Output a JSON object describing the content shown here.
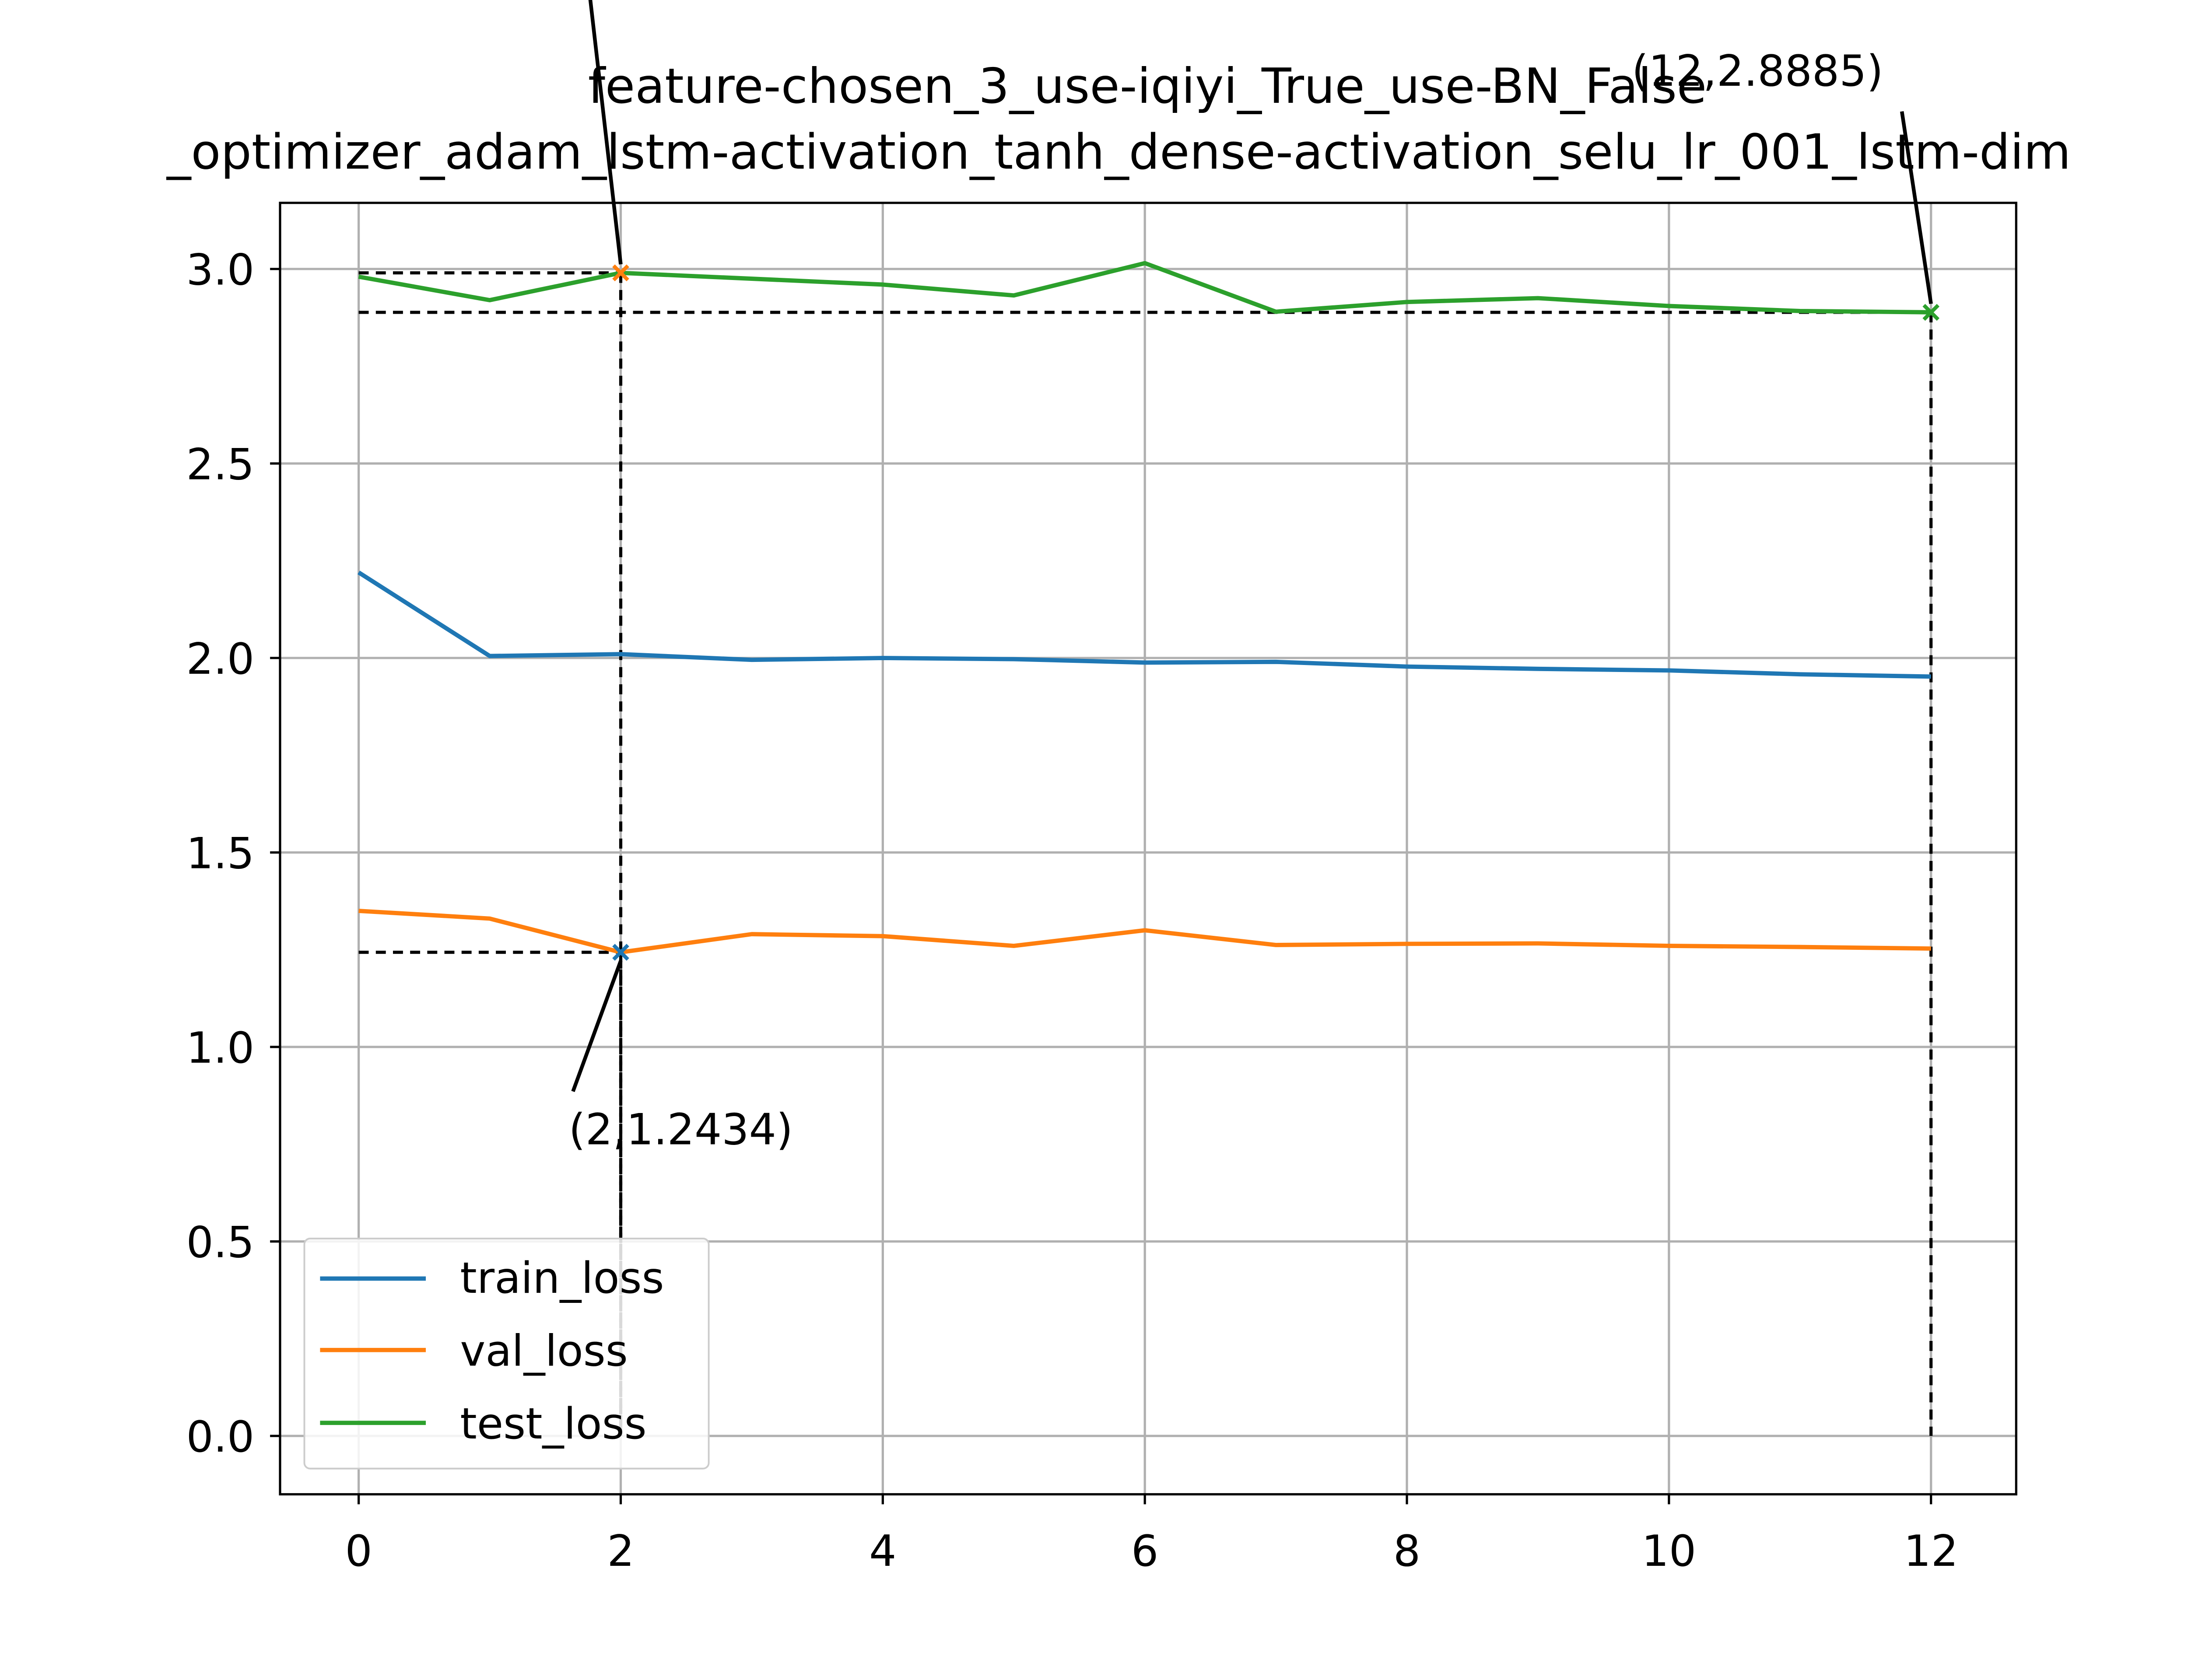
{
  "chart_data": {
    "type": "line",
    "title_lines": [
      "feature-chosen_3_use-iqiyi_True_use-BN_False",
      "_optimizer_adam_lstm-activation_tanh_dense-activation_selu_lr_001_lstm-dim"
    ],
    "xlabel": "",
    "ylabel": "",
    "xlim": [
      -0.6,
      12.65
    ],
    "ylim": [
      -0.15,
      3.17
    ],
    "x_ticks": [
      0,
      2,
      4,
      6,
      8,
      10,
      12
    ],
    "x_tick_labels": [
      "0",
      "2",
      "4",
      "6",
      "8",
      "10",
      "12"
    ],
    "y_ticks": [
      0.0,
      0.5,
      1.0,
      1.5,
      2.0,
      2.5,
      3.0
    ],
    "y_tick_labels": [
      "0.0",
      "0.5",
      "1.0",
      "1.5",
      "2.0",
      "2.5",
      "3.0"
    ],
    "grid": true,
    "legend_position": "lower-left",
    "x": [
      0,
      1,
      2,
      3,
      4,
      5,
      6,
      7,
      8,
      9,
      10,
      11,
      12
    ],
    "series": [
      {
        "name": "train_loss",
        "color": "#1f77b4",
        "values": [
          2.22,
          2.005,
          2.01,
          1.995,
          2.0,
          1.997,
          1.988,
          1.99,
          1.978,
          1.972,
          1.968,
          1.958,
          1.952
        ]
      },
      {
        "name": "val_loss",
        "color": "#ff7f0e",
        "values": [
          1.35,
          1.33,
          1.2434,
          1.29,
          1.285,
          1.26,
          1.3,
          1.262,
          1.265,
          1.266,
          1.26,
          1.257,
          1.253
        ]
      },
      {
        "name": "test_loss",
        "color": "#2ca02c",
        "values": [
          2.98,
          2.92,
          2.99,
          2.975,
          2.96,
          2.932,
          3.015,
          2.89,
          2.915,
          2.925,
          2.905,
          2.892,
          2.8885
        ]
      }
    ],
    "annotations": [
      {
        "label": "(2,1.2434)",
        "x": 2,
        "y": 1.2434,
        "series": "val_loss",
        "color": "#1f77b4"
      },
      {
        "label": "(12,2.8885)",
        "x": 12,
        "y": 2.8885,
        "series": "test_loss",
        "color": "#2ca02c"
      },
      {
        "label": "",
        "x": 2,
        "y": 2.99,
        "series": "test_loss",
        "color": "#ff7f0e"
      }
    ]
  }
}
